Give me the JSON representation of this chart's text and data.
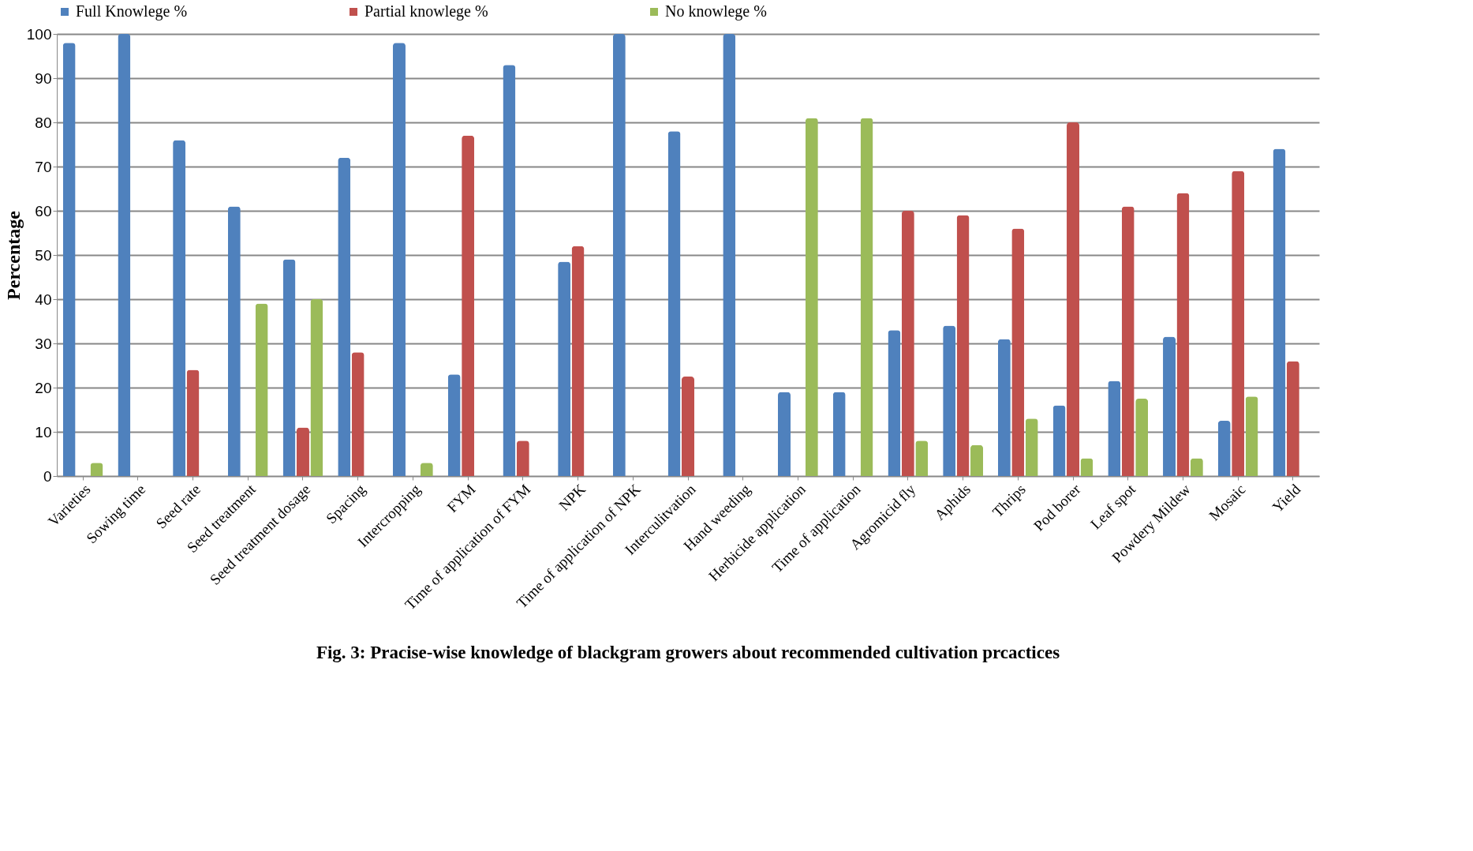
{
  "chart_data": {
    "type": "bar",
    "title": "Fig. 3: Pracise-wise knowledge of blackgram growers about recommended cultivation prcactices",
    "ylabel": "Percentage",
    "categories": [
      "Varieties",
      "Sowing time",
      "Seed rate",
      "Seed treatment",
      "Seed treatment dosage",
      "Spacing",
      "Intercropping",
      "FYM",
      "Time of application of FYM",
      "NPK",
      "Time of application of NPK",
      "Interculitvation",
      "Hand weeding",
      "Herbicide application",
      "Time of application",
      "Agromicid fly",
      "Aphids",
      "Thrips",
      "Pod borer",
      "Leaf spot",
      "Powdery Mildew",
      "Mosaic",
      "Yield"
    ],
    "series": [
      {
        "name": "Full Knowlege %",
        "color": "#4f81bd",
        "values": [
          98,
          100,
          76,
          61,
          49,
          72,
          98,
          23,
          93,
          48.5,
          100,
          78,
          100,
          19,
          19,
          33,
          34,
          31,
          16,
          21.5,
          31.5,
          12.5,
          74
        ]
      },
      {
        "name": "Partial knowlege %",
        "color": "#c0504d",
        "values": [
          0,
          0,
          24,
          0,
          11,
          28,
          0,
          77,
          8,
          52,
          0,
          22.5,
          0,
          0,
          0,
          60,
          59,
          56,
          80,
          61,
          64,
          69,
          26
        ]
      },
      {
        "name": "No knowlege %",
        "color": "#9bbb59",
        "values": [
          3,
          0,
          0,
          39,
          40,
          0,
          3,
          0,
          0,
          0,
          0,
          0,
          0,
          81,
          81,
          8,
          7,
          13,
          4,
          17.5,
          4,
          18,
          0
        ]
      }
    ],
    "ylim": [
      0,
      100
    ],
    "yticks": [
      0,
      10,
      20,
      30,
      40,
      50,
      60,
      70,
      80,
      90,
      100
    ],
    "grid": "y",
    "legend": "top"
  }
}
